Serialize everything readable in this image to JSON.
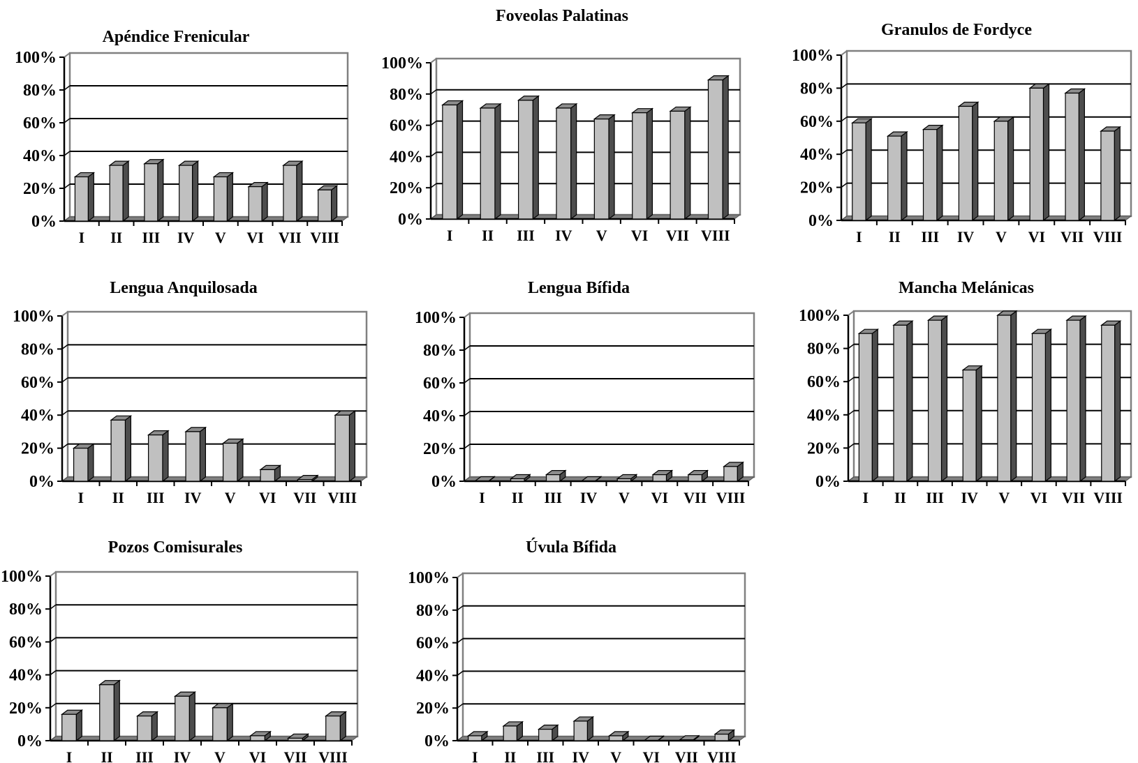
{
  "figure": {
    "colors": {
      "bar_front": "#c0c0c0",
      "bar_side": "#4d4d4d",
      "bar_top": "#8c8c8c",
      "floor": "#808080",
      "frame": "#808080",
      "grid": "#000000"
    }
  },
  "chart_data": [
    {
      "type": "bar",
      "title": "Apéndice Frenicular",
      "categories": [
        "I",
        "II",
        "III",
        "IV",
        "V",
        "VI",
        "VII",
        "VIII"
      ],
      "values": [
        27,
        34,
        35,
        34,
        27,
        21,
        34,
        19
      ],
      "ylim": [
        0,
        100
      ],
      "yticks": [
        "0%",
        "20%",
        "40%",
        "60%",
        "80%",
        "100%"
      ],
      "grid": true,
      "legend": "none",
      "style": "3d"
    },
    {
      "type": "bar",
      "title": "Foveolas Palatinas",
      "categories": [
        "I",
        "II",
        "III",
        "IV",
        "V",
        "VI",
        "VII",
        "VIII"
      ],
      "values": [
        73,
        71,
        76,
        71,
        64,
        68,
        69,
        89
      ],
      "ylim": [
        0,
        100
      ],
      "yticks": [
        "0%",
        "20%",
        "40%",
        "60%",
        "80%",
        "100%"
      ],
      "grid": true,
      "legend": "none",
      "style": "3d"
    },
    {
      "type": "bar",
      "title": "Granulos de Fordyce",
      "categories": [
        "I",
        "II",
        "III",
        "IV",
        "V",
        "VI",
        "VII",
        "VIII"
      ],
      "values": [
        59,
        51,
        55,
        69,
        60,
        80,
        77,
        54
      ],
      "ylim": [
        0,
        100
      ],
      "yticks": [
        "0%",
        "20%",
        "40%",
        "60%",
        "80%",
        "100%"
      ],
      "grid": true,
      "legend": "none",
      "style": "3d"
    },
    {
      "type": "bar",
      "title": "Lengua Anquilosada",
      "categories": [
        "I",
        "II",
        "III",
        "IV",
        "V",
        "VI",
        "VII",
        "VIII"
      ],
      "values": [
        20,
        37,
        28,
        30,
        23,
        7,
        1,
        40
      ],
      "ylim": [
        0,
        100
      ],
      "yticks": [
        "0%",
        "20%",
        "40%",
        "60%",
        "80%",
        "100%"
      ],
      "grid": true,
      "legend": "none",
      "style": "3d"
    },
    {
      "type": "bar",
      "title": "Lengua Bífida",
      "categories": [
        "I",
        "II",
        "III",
        "IV",
        "V",
        "VI",
        "VII",
        "VIII"
      ],
      "values": [
        0,
        1.5,
        4,
        0,
        1.5,
        4,
        4,
        9
      ],
      "ylim": [
        0,
        100
      ],
      "yticks": [
        "0%",
        "20%",
        "40%",
        "60%",
        "80%",
        "100%"
      ],
      "grid": true,
      "legend": "none",
      "style": "3d"
    },
    {
      "type": "bar",
      "title": "Mancha Melánicas",
      "categories": [
        "I",
        "II",
        "III",
        "IV",
        "V",
        "VI",
        "VII",
        "VIII"
      ],
      "values": [
        89,
        94,
        97,
        67,
        100,
        89,
        97,
        94
      ],
      "ylim": [
        0,
        100
      ],
      "yticks": [
        "0%",
        "20%",
        "40%",
        "60%",
        "80%",
        "100%"
      ],
      "grid": true,
      "legend": "none",
      "style": "3d"
    },
    {
      "type": "bar",
      "title": "Pozos Comisurales",
      "categories": [
        "I",
        "II",
        "III",
        "IV",
        "V",
        "VI",
        "VII",
        "VIII"
      ],
      "values": [
        16,
        34,
        15,
        27,
        20,
        3,
        1.5,
        15
      ],
      "ylim": [
        0,
        100
      ],
      "yticks": [
        "0%",
        "20%",
        "40%",
        "60%",
        "80%",
        "100%"
      ],
      "grid": true,
      "legend": "none",
      "style": "3d"
    },
    {
      "type": "bar",
      "title": "Úvula Bífida",
      "categories": [
        "I",
        "II",
        "III",
        "IV",
        "V",
        "VI",
        "VII",
        "VIII"
      ],
      "values": [
        3,
        9,
        7,
        12,
        3,
        0,
        0.5,
        4
      ],
      "ylim": [
        0,
        100
      ],
      "yticks": [
        "0%",
        "20%",
        "40%",
        "60%",
        "80%",
        "100%"
      ],
      "grid": true,
      "legend": "none",
      "style": "3d"
    }
  ]
}
